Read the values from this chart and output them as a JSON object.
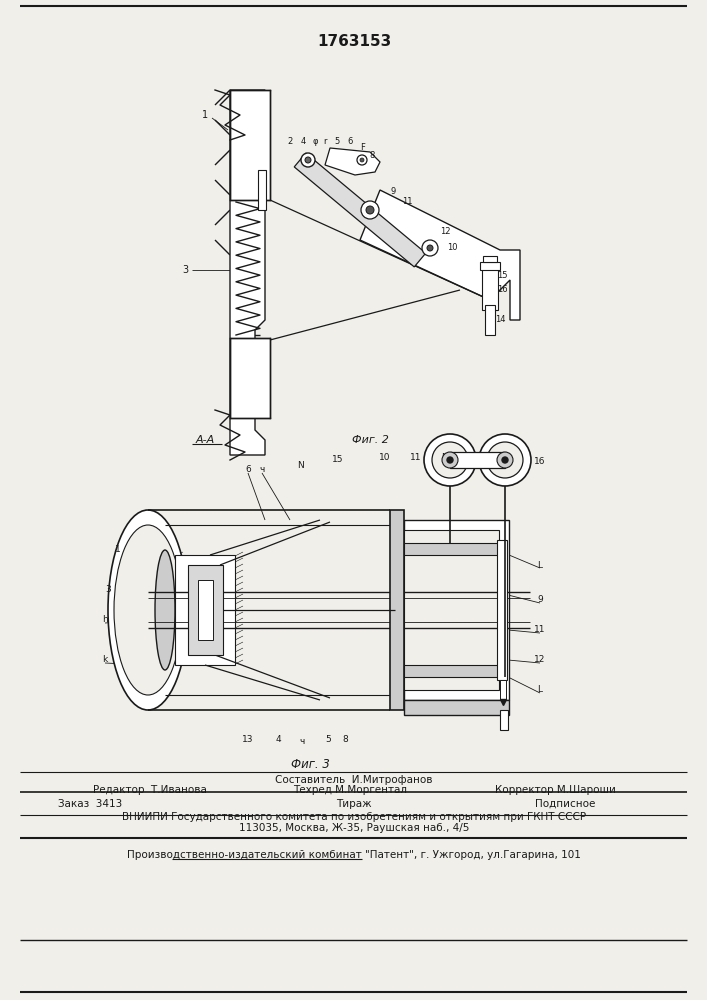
{
  "patent_number": "1763153",
  "fig2_label": "Фиг. 2",
  "fig3_label": "Фиг. 3",
  "aa_label": "А-А",
  "editor_line": "Редактор  Т.Иванова",
  "composer_line": "Составитель  И.Митрофанов",
  "techred_line": "Техред М.Моргентал",
  "corrector_line": "Корректор М.Шароши",
  "order_line": "Заказ  3413",
  "tirazh_line": "Тираж",
  "podpisnoe_line": "Подписное",
  "vniipи_line": "ВНИИПИ Государственного комитета по изобретениям и открытиям при ГКНТ СССР",
  "address_line": "113035, Москва, Ж-35, Раушская наб., 4/5",
  "kombinat_line": "Производственно-издательский комбинат \"Патент\", г. Ужгород, ул.Гагарина, 101",
  "bg_color": "#f0efea",
  "line_color": "#1a1a1a",
  "text_color": "#1a1a1a"
}
